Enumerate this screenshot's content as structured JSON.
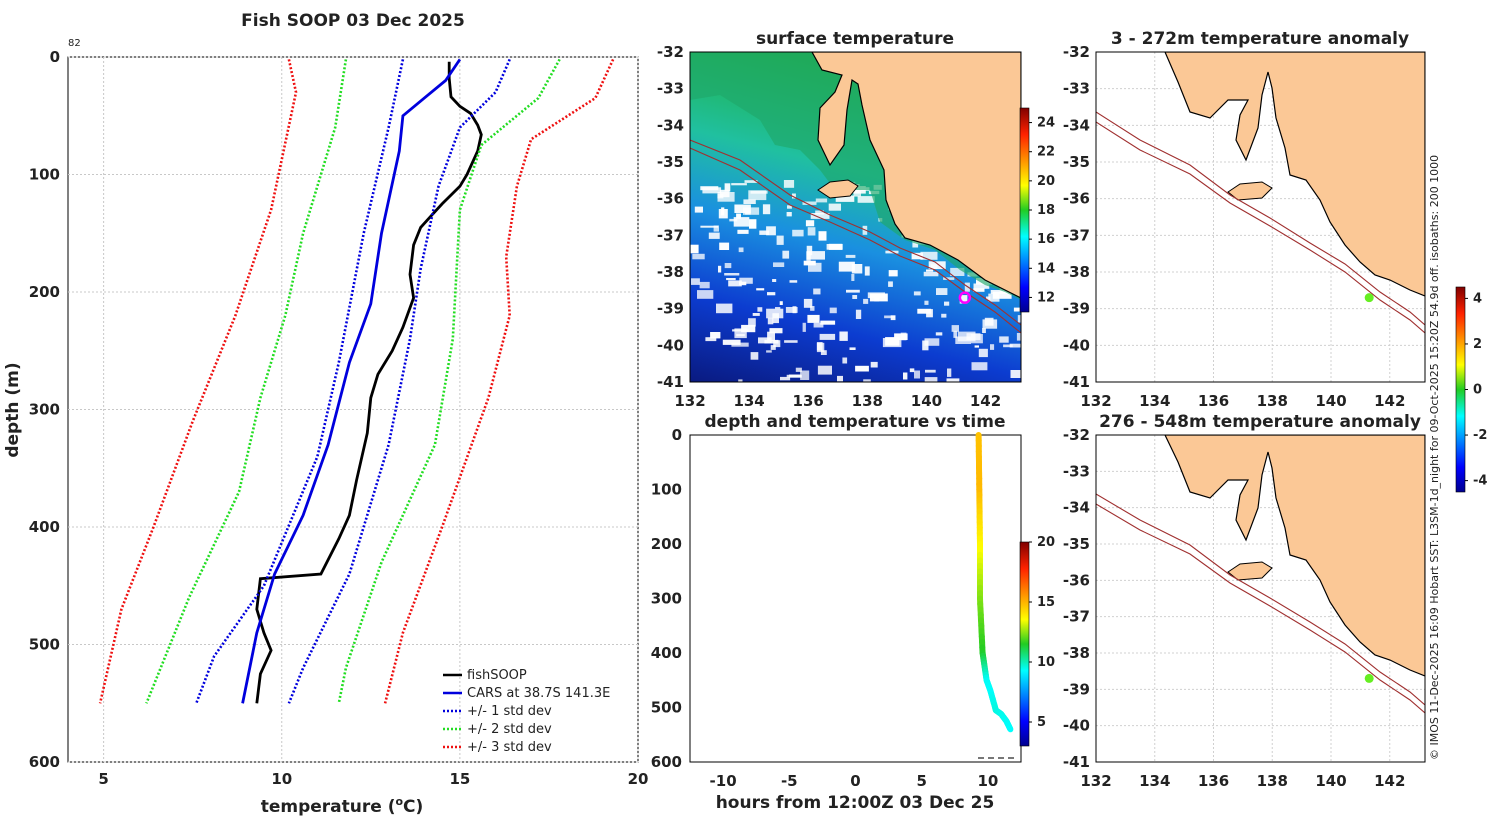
{
  "chart_data": [
    {
      "type": "line",
      "panel": "profile",
      "title": "Fish SOOP 03 Dec 2025",
      "xlabel": "temperature (°C)",
      "xlabel_text": "temperature (",
      "xlabel_unit": "o",
      "xlabel_tail": "C)",
      "ylabel": "depth (m)",
      "corner_label": "82",
      "xlim": [
        4,
        20
      ],
      "ylim": [
        600,
        0
      ],
      "xticks": [
        "5",
        "10",
        "15",
        "20"
      ],
      "yticks": [
        "0",
        "100",
        "200",
        "300",
        "400",
        "500",
        "600"
      ],
      "series": [
        {
          "name": "fishSOOP",
          "color": "#000000",
          "style": "solid",
          "points": [
            [
              14.7,
              4
            ],
            [
              14.7,
              18
            ],
            [
              14.75,
              34
            ],
            [
              15.0,
              42
            ],
            [
              15.3,
              48
            ],
            [
              15.5,
              58
            ],
            [
              15.6,
              66
            ],
            [
              15.5,
              80
            ],
            [
              15.2,
              100
            ],
            [
              15.0,
              110
            ],
            [
              14.5,
              125
            ],
            [
              14.2,
              135
            ],
            [
              13.9,
              145
            ],
            [
              13.7,
              160
            ],
            [
              13.6,
              185
            ],
            [
              13.7,
              205
            ],
            [
              13.4,
              230
            ],
            [
              13.1,
              250
            ],
            [
              12.7,
              270
            ],
            [
              12.5,
              290
            ],
            [
              12.4,
              320
            ],
            [
              12.1,
              360
            ],
            [
              11.9,
              390
            ],
            [
              11.6,
              410
            ],
            [
              11.1,
              440
            ],
            [
              9.4,
              444
            ],
            [
              9.3,
              470
            ],
            [
              9.5,
              490
            ],
            [
              9.7,
              505
            ],
            [
              9.4,
              525
            ],
            [
              9.3,
              550
            ]
          ]
        },
        {
          "name": "CARS at 38.7S 141.3E",
          "color": "#0000dd",
          "style": "solid",
          "points": [
            [
              15.0,
              2
            ],
            [
              14.6,
              20
            ],
            [
              14.0,
              35
            ],
            [
              13.4,
              50
            ],
            [
              13.3,
              80
            ],
            [
              12.8,
              150
            ],
            [
              12.5,
              210
            ],
            [
              11.9,
              260
            ],
            [
              11.3,
              330
            ],
            [
              10.6,
              390
            ],
            [
              9.8,
              440
            ],
            [
              9.3,
              490
            ],
            [
              8.9,
              550
            ]
          ]
        },
        {
          "name": "+/- 1 std dev",
          "color": "#0000dd",
          "style": "dotted",
          "points": [
            [
              13.4,
              2
            ],
            [
              13.0,
              60
            ],
            [
              12.3,
              150
            ],
            [
              11.6,
              260
            ],
            [
              11.0,
              340
            ],
            [
              9.5,
              450
            ],
            [
              8.1,
              510
            ],
            [
              7.6,
              550
            ]
          ]
        },
        {
          "name": "+/- 1 std dev upper",
          "color": "#0000dd",
          "style": "dotted",
          "legend": false,
          "points": [
            [
              16.4,
              2
            ],
            [
              16.0,
              30
            ],
            [
              15.0,
              60
            ],
            [
              14.4,
              110
            ],
            [
              13.9,
              180
            ],
            [
              13.6,
              240
            ],
            [
              13.0,
              330
            ],
            [
              11.9,
              440
            ],
            [
              10.6,
              520
            ],
            [
              10.2,
              550
            ]
          ]
        },
        {
          "name": "+/- 2 std dev",
          "color": "#22dd22",
          "style": "dotted",
          "points": [
            [
              11.8,
              2
            ],
            [
              11.5,
              60
            ],
            [
              10.6,
              150
            ],
            [
              10.1,
              220
            ],
            [
              9.4,
              290
            ],
            [
              8.8,
              370
            ],
            [
              7.4,
              460
            ],
            [
              6.2,
              550
            ]
          ]
        },
        {
          "name": "+/- 2 std dev upper",
          "color": "#22dd22",
          "style": "dotted",
          "legend": false,
          "points": [
            [
              17.8,
              2
            ],
            [
              17.2,
              35
            ],
            [
              15.6,
              75
            ],
            [
              15.0,
              130
            ],
            [
              14.8,
              240
            ],
            [
              14.3,
              330
            ],
            [
              12.8,
              430
            ],
            [
              11.8,
              520
            ],
            [
              11.6,
              550
            ]
          ]
        },
        {
          "name": "+/- 3 std dev",
          "color": "#ee1111",
          "style": "dotted",
          "points": [
            [
              10.2,
              2
            ],
            [
              10.4,
              30
            ],
            [
              9.7,
              130
            ],
            [
              8.7,
              220
            ],
            [
              7.5,
              310
            ],
            [
              6.4,
              400
            ],
            [
              5.5,
              470
            ],
            [
              4.9,
              550
            ]
          ]
        },
        {
          "name": "+/- 3 std dev upper",
          "color": "#ee1111",
          "style": "dotted",
          "legend": false,
          "points": [
            [
              19.3,
              2
            ],
            [
              18.8,
              35
            ],
            [
              17.0,
              70
            ],
            [
              16.6,
              110
            ],
            [
              16.3,
              170
            ],
            [
              16.4,
              220
            ],
            [
              15.8,
              290
            ],
            [
              14.5,
              400
            ],
            [
              13.4,
              490
            ],
            [
              12.9,
              550
            ]
          ]
        }
      ]
    },
    {
      "type": "heatmap",
      "panel": "sst_map",
      "title": "surface temperature",
      "xticks": [
        "132",
        "134",
        "136",
        "138",
        "140",
        "142"
      ],
      "yticks": [
        "-32",
        "-33",
        "-34",
        "-35",
        "-36",
        "-37",
        "-38",
        "-39",
        "-40",
        "-41"
      ],
      "xlim": [
        132,
        143.2
      ],
      "ylim": [
        -41,
        -32
      ],
      "colorbar_ticks": [
        "12",
        "14",
        "16",
        "18",
        "20",
        "22",
        "24"
      ],
      "colorbar_range": [
        11,
        25
      ],
      "station": {
        "lon": 141.3,
        "lat": -38.7,
        "color": "#ff00ff"
      }
    },
    {
      "type": "scatter",
      "panel": "depth_time",
      "title": "depth and temperature vs time",
      "xlabel": "hours from 12:00Z 03 Dec 25",
      "xlim": [
        -12.5,
        12.5
      ],
      "ylim": [
        600,
        0
      ],
      "xticks": [
        "-10",
        "-5",
        "0",
        "5",
        "10"
      ],
      "yticks": [
        "0",
        "100",
        "200",
        "300",
        "400",
        "500",
        "600"
      ],
      "colorbar_ticks": [
        "5",
        "10",
        "15",
        "20"
      ],
      "colorbar_range": [
        3,
        20
      ],
      "track": [
        [
          9.3,
          0,
          14.7
        ],
        [
          9.35,
          100,
          14.9
        ],
        [
          9.4,
          200,
          13.7
        ],
        [
          9.4,
          300,
          12.4
        ],
        [
          9.6,
          400,
          11.5
        ],
        [
          9.9,
          450,
          9.4
        ],
        [
          10.2,
          470,
          9.3
        ],
        [
          10.6,
          505,
          9.6
        ],
        [
          11.0,
          512,
          9.5
        ],
        [
          11.4,
          525,
          9.4
        ],
        [
          11.7,
          540,
          9.3
        ]
      ]
    },
    {
      "type": "heatmap",
      "panel": "anomaly_upper",
      "title": "3 - 272m temperature anomaly",
      "xticks": [
        "132",
        "134",
        "136",
        "138",
        "140",
        "142"
      ],
      "yticks": [
        "-32",
        "-33",
        "-34",
        "-35",
        "-36",
        "-37",
        "-38",
        "-39",
        "-40",
        "-41"
      ],
      "xlim": [
        132,
        143.2
      ],
      "ylim": [
        -41,
        -32
      ],
      "station": {
        "lon": 141.3,
        "lat": -38.7,
        "color": "#66ee22"
      }
    },
    {
      "type": "heatmap",
      "panel": "anomaly_lower",
      "title": "276 - 548m temperature anomaly",
      "xticks": [
        "132",
        "134",
        "136",
        "138",
        "140",
        "142"
      ],
      "yticks": [
        "-32",
        "-33",
        "-34",
        "-35",
        "-36",
        "-37",
        "-38",
        "-39",
        "-40",
        "-41"
      ],
      "xlim": [
        132,
        143.2
      ],
      "ylim": [
        -41,
        -32
      ],
      "colorbar_ticks": [
        "-4",
        "-2",
        "0",
        "2",
        "4"
      ],
      "colorbar_range": [
        -4.5,
        4.5
      ],
      "station": {
        "lon": 141.3,
        "lat": -38.7,
        "color": "#66ee22"
      }
    }
  ],
  "legend": [
    "fishSOOP",
    "CARS at 38.7S 141.3E",
    "+/- 1 std dev",
    "+/- 2 std dev",
    "+/- 3 std dev"
  ],
  "credit": "© IMOS 11-Dec-2025 16:09 Hobart SST: L3SM-1d_night for 09-Oct-2025 15:20Z 54.9d off. isobaths: 200  1000"
}
